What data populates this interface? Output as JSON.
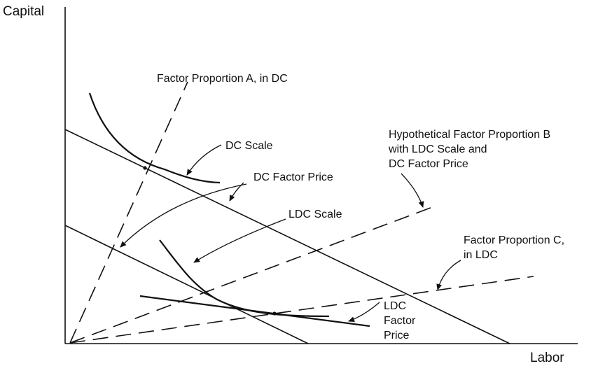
{
  "axes": {
    "y_label": "Capital",
    "x_label": "Labor"
  },
  "labels": {
    "factor_proportion_a": "Factor Proportion A, in DC",
    "dc_scale": "DC Scale",
    "dc_factor_price": "DC Factor Price",
    "ldc_scale": "LDC Scale",
    "hyp_b_line1": "Hypothetical Factor Proportion B",
    "hyp_b_line2": "with LDC Scale and",
    "hyp_b_line3": "DC Factor Price",
    "factor_proportion_c_line1": "Factor Proportion C,",
    "factor_proportion_c_line2": "in LDC",
    "ldc_factor_price_line1": "LDC",
    "ldc_factor_price_line2": "Factor",
    "ldc_factor_price_line3": "Price"
  },
  "colors": {
    "ink": "#111111",
    "background": "#ffffff"
  }
}
